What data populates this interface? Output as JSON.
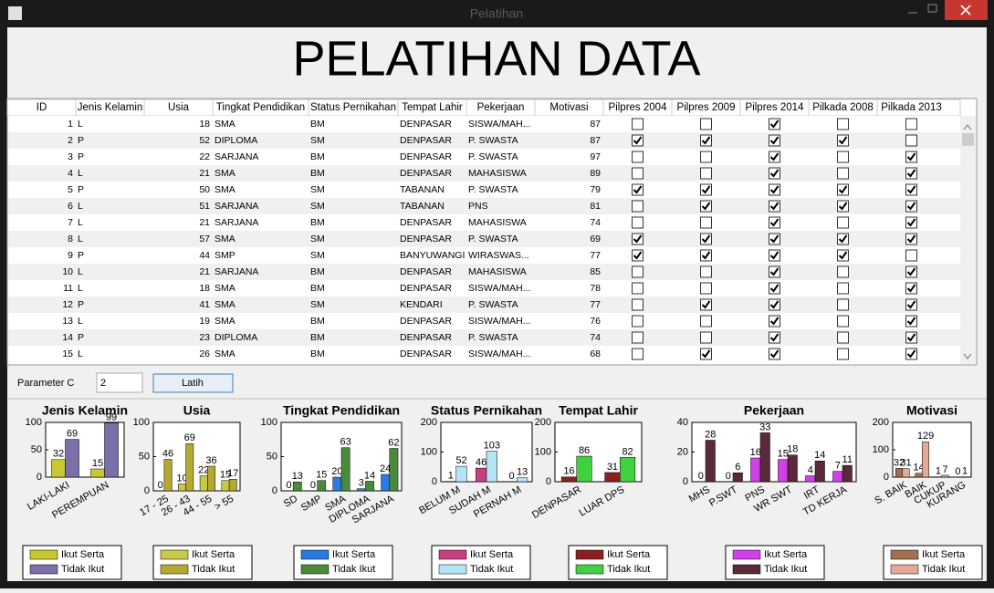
{
  "window": {
    "title": "Pelatihan"
  },
  "header": {
    "title": "PELATIHAN DATA"
  },
  "table": {
    "columns": [
      "ID",
      "Jenis Kelamin",
      "Usia",
      "Tingkat Pendidikan",
      "Status Pernikahan",
      "Tempat Lahir",
      "Pekerjaan",
      "Motivasi",
      "Pilpres 2004",
      "Pilpres 2009",
      "Pilpres 2014",
      "Pilkada 2008",
      "Pilkada 2013"
    ],
    "rows": [
      [
        1,
        "L",
        18,
        "SMA",
        "BM",
        "DENPASAR",
        "SISWA/MAH...",
        87,
        false,
        false,
        true,
        false,
        false
      ],
      [
        2,
        "P",
        52,
        "DIPLOMA",
        "SM",
        "DENPASAR",
        "P. SWASTA",
        87,
        true,
        true,
        true,
        true,
        false
      ],
      [
        3,
        "P",
        22,
        "SARJANA",
        "BM",
        "DENPASAR",
        "P. SWASTA",
        97,
        false,
        false,
        true,
        false,
        true
      ],
      [
        4,
        "L",
        21,
        "SMA",
        "BM",
        "DENPASAR",
        "MAHASISWA",
        89,
        false,
        false,
        true,
        false,
        true
      ],
      [
        5,
        "P",
        50,
        "SMA",
        "SM",
        "TABANAN",
        "P. SWASTA",
        79,
        true,
        true,
        true,
        true,
        true
      ],
      [
        6,
        "L",
        51,
        "SARJANA",
        "SM",
        "TABANAN",
        "PNS",
        81,
        false,
        true,
        true,
        true,
        true
      ],
      [
        7,
        "L",
        21,
        "SARJANA",
        "BM",
        "DENPASAR",
        "MAHASISWA",
        74,
        false,
        false,
        true,
        false,
        true
      ],
      [
        8,
        "L",
        57,
        "SMA",
        "SM",
        "DENPASAR",
        "P. SWASTA",
        69,
        true,
        true,
        true,
        true,
        true
      ],
      [
        9,
        "P",
        44,
        "SMP",
        "SM",
        "BANYUWANGI",
        "WIRASWAS...",
        77,
        true,
        true,
        true,
        true,
        false
      ],
      [
        10,
        "L",
        21,
        "SARJANA",
        "BM",
        "DENPASAR",
        "MAHASISWA",
        85,
        false,
        false,
        true,
        false,
        true
      ],
      [
        11,
        "L",
        18,
        "SMA",
        "BM",
        "DENPASAR",
        "SISWA/MAH...",
        78,
        false,
        false,
        true,
        false,
        true
      ],
      [
        12,
        "P",
        41,
        "SMA",
        "SM",
        "KENDARI",
        "P. SWASTA",
        77,
        false,
        true,
        true,
        false,
        true
      ],
      [
        13,
        "L",
        19,
        "SMA",
        "BM",
        "DENPASAR",
        "SISWA/MAH...",
        76,
        false,
        false,
        true,
        false,
        true
      ],
      [
        14,
        "P",
        23,
        "DIPLOMA",
        "BM",
        "DENPASAR",
        "P. SWASTA",
        74,
        false,
        false,
        true,
        false,
        true
      ],
      [
        15,
        "L",
        26,
        "SMA",
        "BM",
        "DENPASAR",
        "SISWA/MAH...",
        68,
        false,
        true,
        true,
        false,
        true
      ]
    ]
  },
  "controls": {
    "parameter_label": "Parameter C",
    "parameter_value": "2",
    "button": "Latih"
  },
  "chart_data": [
    {
      "type": "bar",
      "title": "Jenis Kelamin",
      "categories": [
        "LAKI-LAKI",
        "PEREMPUAN"
      ],
      "ylim": [
        0,
        100
      ],
      "yticks": [
        0,
        50,
        100
      ],
      "series": [
        {
          "name": "Ikut Serta",
          "color": "#c8c832",
          "values": [
            32,
            15
          ]
        },
        {
          "name": "Tidak Ikut",
          "color": "#7a6fa8",
          "values": [
            69,
            99
          ]
        }
      ]
    },
    {
      "type": "bar",
      "title": "Usia",
      "categories": [
        "17 - 25",
        "26 - 43",
        "44 - 55",
        "> 55"
      ],
      "ylim": [
        0,
        100
      ],
      "yticks": [
        0,
        50,
        100
      ],
      "series": [
        {
          "name": "Ikut Serta",
          "color": "#c8c84a",
          "values": [
            0,
            10,
            22,
            15
          ]
        },
        {
          "name": "Tidak Ikut",
          "color": "#b4a830",
          "values": [
            46,
            69,
            36,
            17
          ]
        }
      ]
    },
    {
      "type": "bar",
      "title": "Tingkat Pendidikan",
      "categories": [
        "SD",
        "SMP",
        "SMA",
        "DIPLOMA",
        "SARJANA"
      ],
      "ylim": [
        0,
        100
      ],
      "yticks": [
        0,
        50,
        100
      ],
      "series": [
        {
          "name": "Ikut Serta",
          "color": "#2a7ae0",
          "values": [
            0,
            0,
            20,
            3,
            24
          ]
        },
        {
          "name": "Tidak Ikut",
          "color": "#4a8a3a",
          "values": [
            13,
            15,
            63,
            14,
            62
          ]
        }
      ]
    },
    {
      "type": "bar",
      "title": "Status Pernikahan",
      "categories": [
        "BELUM M",
        "SUDAH M",
        "PERNAH M"
      ],
      "ylim": [
        0,
        200
      ],
      "yticks": [
        0,
        100,
        200
      ],
      "series": [
        {
          "name": "Ikut Serta",
          "color": "#c84080",
          "values": [
            1,
            46,
            0
          ]
        },
        {
          "name": "Tidak Ikut",
          "color": "#b4e4f4",
          "values": [
            52,
            103,
            13
          ]
        }
      ]
    },
    {
      "type": "bar",
      "title": "Tempat Lahir",
      "categories": [
        "DENPASAR",
        "LUAR DPS"
      ],
      "ylim": [
        0,
        200
      ],
      "yticks": [
        0,
        100,
        200
      ],
      "series": [
        {
          "name": "Ikut Serta",
          "color": "#8b2020",
          "values": [
            16,
            31
          ]
        },
        {
          "name": "Tidak Ikut",
          "color": "#40d040",
          "values": [
            86,
            82
          ]
        }
      ]
    },
    {
      "type": "bar",
      "title": "Pekerjaan",
      "categories": [
        "MHS",
        "P.SWT",
        "PNS",
        "WR SWT",
        "IRT",
        "TD KERJA"
      ],
      "ylim": [
        0,
        40
      ],
      "yticks": [
        0,
        20,
        40
      ],
      "series": [
        {
          "name": "Ikut Serta",
          "color": "#d040e8",
          "values": [
            0,
            0,
            16,
            15,
            4,
            7
          ]
        },
        {
          "name": "Tidak Ikut",
          "color": "#5a2a3a",
          "values": [
            28,
            6,
            33,
            18,
            14,
            11
          ]
        }
      ]
    },
    {
      "type": "bar",
      "title": "Motivasi",
      "categories": [
        "S. BAIK",
        "BAIK",
        "CUKUP",
        "KURANG"
      ],
      "ylim": [
        0,
        200
      ],
      "yticks": [
        0,
        100,
        200
      ],
      "series": [
        {
          "name": "Ikut Serta",
          "color": "#a07050",
          "values": [
            32,
            14,
            1,
            0
          ]
        },
        {
          "name": "Tidak Ikut",
          "color": "#e4a898",
          "values": [
            31,
            129,
            7,
            1
          ]
        }
      ]
    }
  ]
}
